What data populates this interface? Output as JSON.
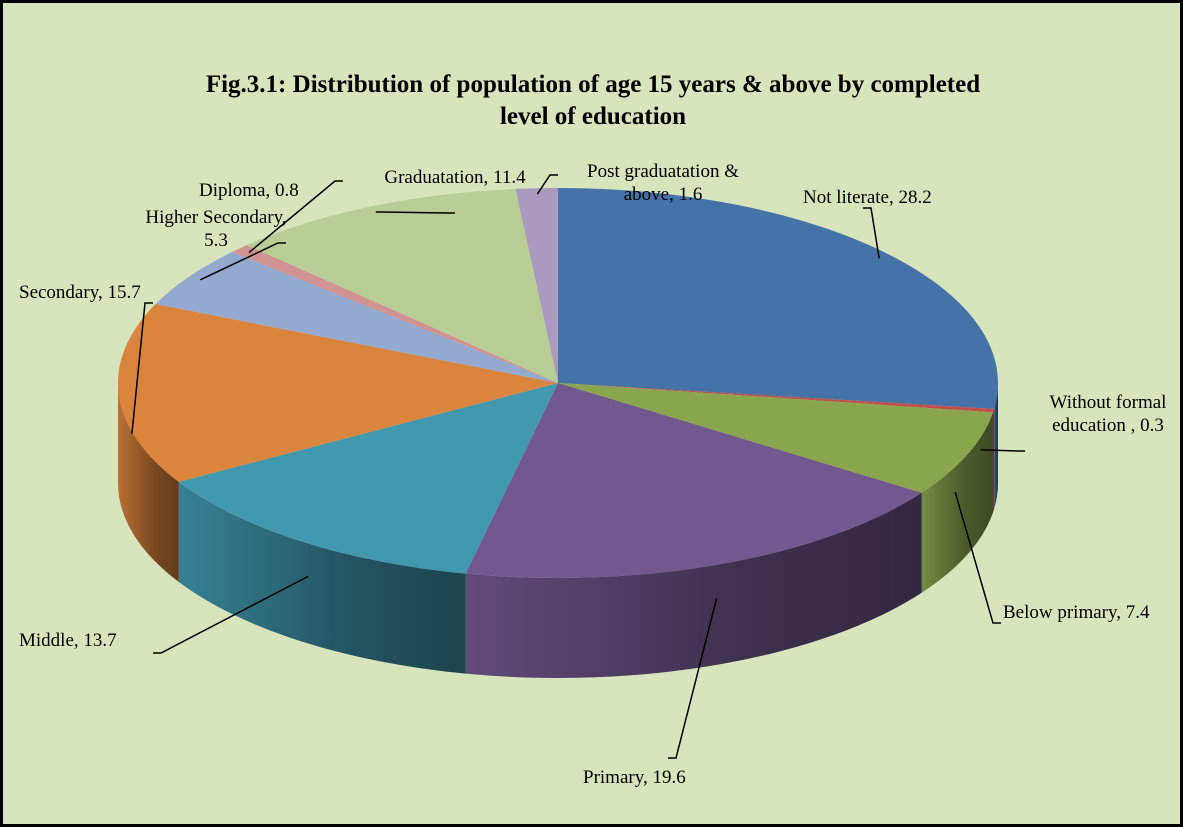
{
  "chart_data": {
    "type": "pie",
    "title": "Fig.3.1: Distribution of population of age 15 years  & above by completed level of education",
    "categories": [
      "Not literate,",
      "Without formal education ,",
      "Below primary,",
      "Primary,",
      "Middle,",
      "Secondary,",
      "Higher Secondary,",
      "Diploma,",
      "Graduatation,",
      "Post graduatation & above,"
    ],
    "values": [
      28.2,
      0.3,
      7.4,
      19.6,
      13.7,
      15.7,
      5.3,
      0.8,
      11.4,
      1.6
    ],
    "colors": [
      "#4572a7",
      "#c0504d",
      "#89a54e",
      "#71588f",
      "#4198af",
      "#db843d",
      "#93a9cf",
      "#d19392",
      "#b9cd96",
      "#a99bbd"
    ]
  }
}
